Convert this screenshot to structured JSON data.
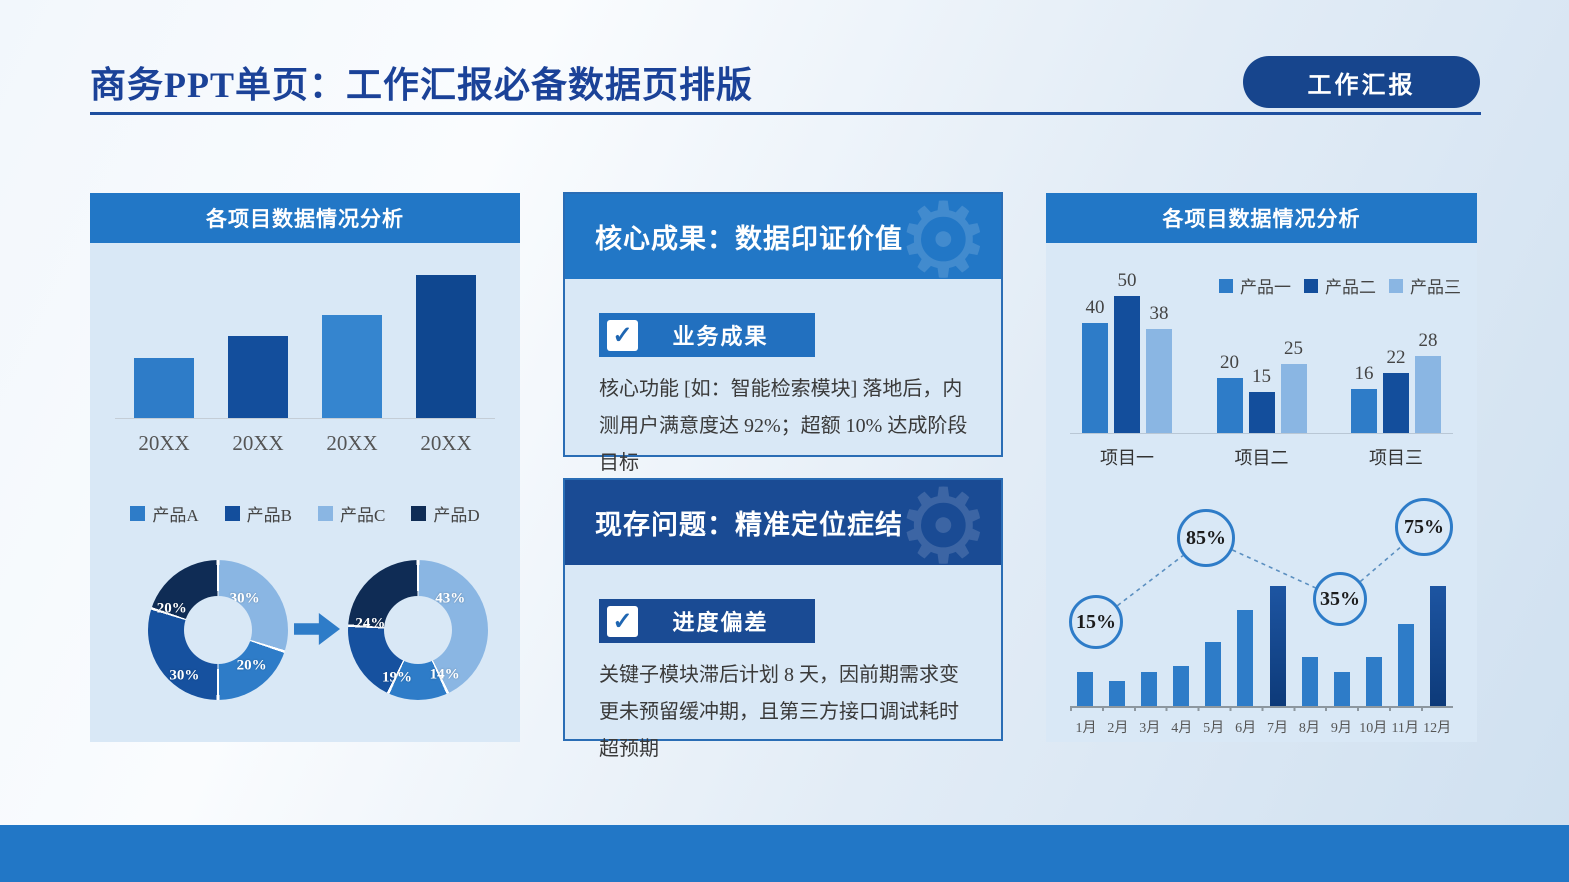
{
  "palette": {
    "medium": "#2e7cc8",
    "mediumAlt": "#3585cf",
    "dark": "#134e9c",
    "darkAlt": "#0f4790",
    "light": "#8ab6e3",
    "navy": "#0f2c55",
    "donutDark": "#16519f",
    "monthHighlightTop": "#1d55a2",
    "monthHighlightBottom": "#0d3a79",
    "headerBlue": "#2277c6",
    "deepBlue": "#1a4b94",
    "pillBlue": "#17458d",
    "titleBlue": "#1b4298",
    "panelBg": "#d9e8f6"
  },
  "header": {
    "title": "商务PPT单页：工作汇报必备数据页排版",
    "badge": "工作汇报"
  },
  "left_panel": {
    "title": "各项目数据情况分析",
    "legend": [
      {
        "label": "产品A",
        "color": "medium"
      },
      {
        "label": "产品B",
        "color": "dark"
      },
      {
        "label": "产品C",
        "color": "light"
      },
      {
        "label": "产品D",
        "color": "navy"
      }
    ]
  },
  "middle": {
    "cards": [
      {
        "title": "核心成果：数据印证价值",
        "tag": "业务成果",
        "check_icon": "✓",
        "body": "核心功能 [如：智能检索模块] 落地后，内测用户满意度达 92%；超额 10% 达成阶段目标"
      },
      {
        "title": "现存问题：精准定位症结",
        "tag": "进度偏差",
        "check_icon": "✓",
        "body": "关键子模块滞后计划 8 天，因前期需求变更未预留缓冲期，且第三方接口调试耗时超预期"
      }
    ]
  },
  "right_panel": {
    "title": "各项目数据情况分析",
    "legend": [
      {
        "label": "产品一",
        "color": "medium"
      },
      {
        "label": "产品二",
        "color": "dark"
      },
      {
        "label": "产品三",
        "color": "light"
      }
    ],
    "callouts": [
      {
        "label": "15%"
      },
      {
        "label": "85%"
      },
      {
        "label": "35%"
      },
      {
        "label": "75%"
      }
    ]
  },
  "chart_data": [
    {
      "id": "yearly_bars",
      "type": "bar",
      "title": "各项目数据情况分析",
      "categories": [
        "20XX",
        "20XX",
        "20XX",
        "20XX"
      ],
      "values": [
        42,
        57,
        72,
        100
      ],
      "value_note": "no numeric labels shown; relative heights estimated, tallest = 100",
      "bar_colors": [
        "medium",
        "dark",
        "mediumAlt",
        "darkAlt"
      ],
      "legend": [
        "产品A",
        "产品B",
        "产品C",
        "产品D"
      ]
    },
    {
      "id": "donut_before",
      "type": "pie",
      "slices": [
        {
          "label": "30%",
          "value": 30,
          "color": "light"
        },
        {
          "label": "20%",
          "value": 20,
          "color": "medium"
        },
        {
          "label": "30%",
          "value": 30,
          "color": "donutDark"
        },
        {
          "label": "20%",
          "value": 20,
          "color": "navy"
        }
      ]
    },
    {
      "id": "donut_after",
      "type": "pie",
      "slices": [
        {
          "label": "43%",
          "value": 43,
          "color": "light"
        },
        {
          "label": "14%",
          "value": 14,
          "color": "medium"
        },
        {
          "label": "19%",
          "value": 19,
          "color": "donutDark"
        },
        {
          "label": "24%",
          "value": 24,
          "color": "navy"
        }
      ]
    },
    {
      "id": "project_grouped_bars",
      "type": "bar",
      "title": "各项目数据情况分析",
      "categories": [
        "项目一",
        "项目二",
        "项目三"
      ],
      "series": [
        {
          "name": "产品一",
          "color": "medium",
          "values": [
            40,
            20,
            16
          ]
        },
        {
          "name": "产品二",
          "color": "dark",
          "values": [
            50,
            15,
            22
          ]
        },
        {
          "name": "产品三",
          "color": "light",
          "values": [
            38,
            25,
            28
          ]
        }
      ],
      "legend_position": "top-right",
      "data_labels": true
    },
    {
      "id": "monthly_bars",
      "type": "bar",
      "categories": [
        "1月",
        "2月",
        "3月",
        "4月",
        "5月",
        "6月",
        "7月",
        "8月",
        "9月",
        "10月",
        "11月",
        "12月"
      ],
      "values": [
        28,
        21,
        28,
        33,
        53,
        80,
        100,
        41,
        28,
        41,
        68,
        100
      ],
      "value_note": "no numeric labels shown; relative heights estimated, tallest = 100",
      "highlight_indexes": [
        6,
        11
      ],
      "callouts": [
        "15%",
        "85%",
        "35%",
        "75%"
      ]
    }
  ]
}
